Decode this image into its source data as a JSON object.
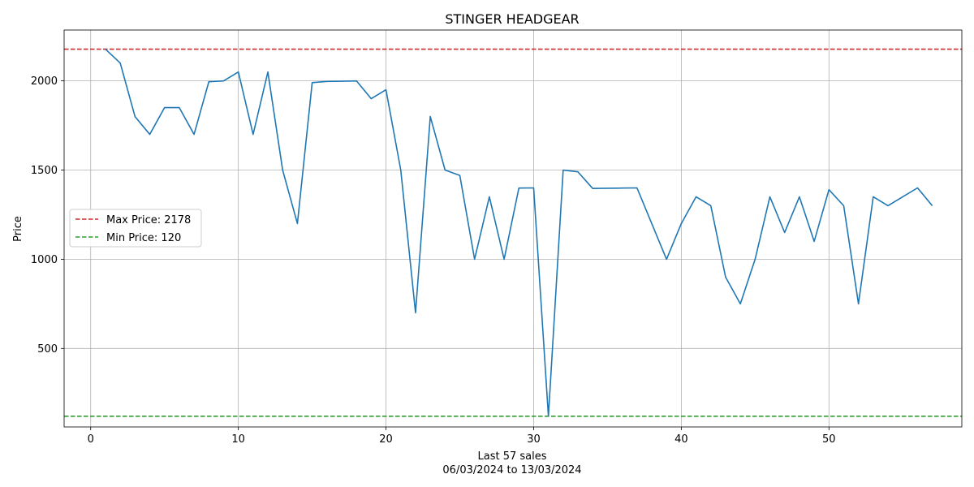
{
  "chart_data": {
    "type": "line",
    "title": "STINGER HEADGEAR",
    "xlabel": "Last 57 sales",
    "xlabel_sub": "06/03/2024 to 13/03/2024",
    "ylabel": "Price",
    "xlim": [
      -1.8,
      59
    ],
    "ylim": [
      60,
      2285
    ],
    "xticks": [
      0,
      10,
      20,
      30,
      40,
      50
    ],
    "yticks": [
      500,
      1000,
      1500,
      2000
    ],
    "grid": true,
    "legend_position": "center-left",
    "series": [
      {
        "color": "#1f77b4",
        "x": [
          1,
          2,
          3,
          4,
          5,
          6,
          7,
          8,
          9,
          10,
          11,
          12,
          13,
          14,
          15,
          16,
          17,
          18,
          19,
          20,
          21,
          22,
          23,
          24,
          25,
          26,
          27,
          28,
          29,
          30,
          31,
          32,
          33,
          34,
          35,
          36,
          37,
          38,
          39,
          40,
          41,
          42,
          43,
          44,
          45,
          46,
          47,
          48,
          49,
          50,
          51,
          52,
          53,
          54,
          55,
          56,
          57
        ],
        "values": [
          2178,
          2100,
          1800,
          1700,
          1850,
          1850,
          1700,
          1995,
          2000,
          2050,
          1700,
          2050,
          1500,
          1200,
          1990,
          1997,
          1998,
          2000,
          1900,
          1950,
          1500,
          700,
          1800,
          1500,
          1470,
          1000,
          1350,
          1000,
          1399,
          1400,
          120,
          1500,
          1490,
          1397,
          1398,
          1399,
          1400,
          1200,
          1000,
          1200,
          1350,
          1300,
          900,
          750,
          1000,
          1350,
          1150,
          1350,
          1100,
          1390,
          1300,
          750,
          1350,
          1300,
          1350,
          1400,
          1300
        ]
      }
    ],
    "reference_lines": [
      {
        "name": "Max Price: 2178",
        "value": 2178,
        "color": "#d62728"
      },
      {
        "name": "Min Price: 120",
        "value": 120,
        "color": "#2ca02c"
      }
    ]
  }
}
